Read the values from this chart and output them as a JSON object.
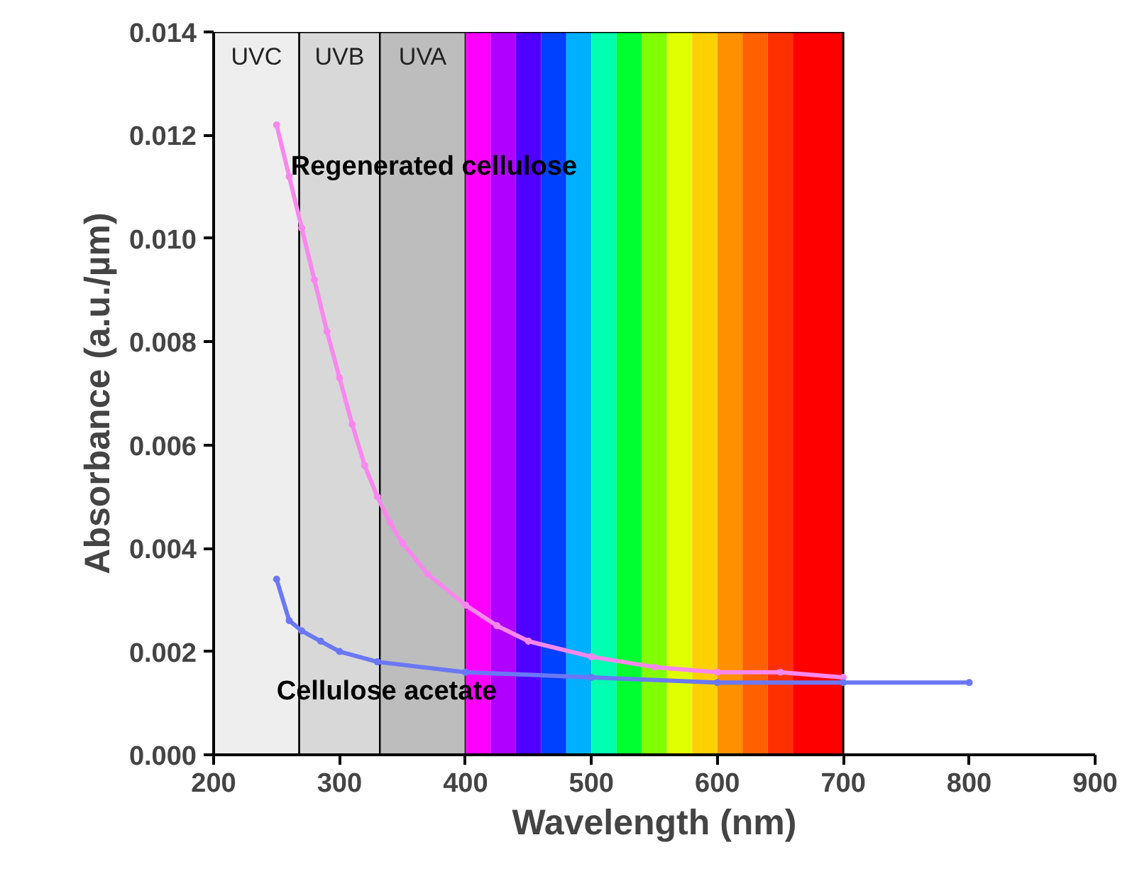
{
  "chart_data": {
    "type": "line",
    "xlabel": "Wavelength (nm)",
    "ylabel": "Absorbance (a.u./µm)",
    "xlim": [
      200,
      900
    ],
    "xticks": [
      200,
      300,
      400,
      500,
      600,
      700,
      800,
      900
    ],
    "ylim": [
      0,
      0.014
    ],
    "yticks": [
      {
        "value": 0,
        "label": "0.000"
      },
      {
        "value": 0.002,
        "label": "0.002"
      },
      {
        "value": 0.004,
        "label": "0.004"
      },
      {
        "value": 0.006,
        "label": "0.006"
      },
      {
        "value": 0.008,
        "label": "0.008"
      },
      {
        "value": 0.01,
        "label": "0.010"
      },
      {
        "value": 0.012,
        "label": "0.012"
      },
      {
        "value": 0.014,
        "label": "0.014"
      }
    ],
    "grid": false,
    "marker": "circle",
    "line_style": "solid",
    "series": [
      {
        "name": "Regenerated cellulose",
        "color": "#f888ee",
        "x": [
          250,
          260,
          270,
          280,
          290,
          300,
          310,
          320,
          330,
          340,
          350,
          370,
          400,
          425,
          450,
          500,
          550,
          600,
          650,
          700
        ],
        "values": [
          0.0122,
          0.0112,
          0.0102,
          0.0092,
          0.0082,
          0.0073,
          0.0064,
          0.0056,
          0.005,
          0.0045,
          0.0041,
          0.0035,
          0.0029,
          0.0025,
          0.0022,
          0.0019,
          0.0017,
          0.0016,
          0.0016,
          0.0015
        ]
      },
      {
        "name": "Cellulose acetate",
        "color": "#6b78f5",
        "x": [
          250,
          260,
          270,
          285,
          300,
          330,
          400,
          500,
          600,
          700,
          800
        ],
        "values": [
          0.0034,
          0.0026,
          0.0024,
          0.0022,
          0.002,
          0.0018,
          0.0016,
          0.0015,
          0.0014,
          0.0014,
          0.0014
        ]
      }
    ],
    "bands": [
      {
        "axis": "x",
        "from": 200,
        "to": 268,
        "label": "UVC",
        "color": "#eeeeee"
      },
      {
        "axis": "x",
        "from": 268,
        "to": 332,
        "label": "UVB",
        "color": "#d8d8d8"
      },
      {
        "axis": "x",
        "from": 332,
        "to": 400,
        "label": "UVA",
        "color": "#bdbdbd"
      },
      {
        "axis": "x",
        "from": 400,
        "to": 420,
        "color": "#ff00ff"
      },
      {
        "axis": "x",
        "from": 420,
        "to": 440,
        "color": "#b000ff"
      },
      {
        "axis": "x",
        "from": 440,
        "to": 460,
        "color": "#5000ff"
      },
      {
        "axis": "x",
        "from": 460,
        "to": 480,
        "color": "#0040ff"
      },
      {
        "axis": "x",
        "from": 480,
        "to": 500,
        "color": "#00b0ff"
      },
      {
        "axis": "x",
        "from": 500,
        "to": 520,
        "color": "#00ffb0"
      },
      {
        "axis": "x",
        "from": 520,
        "to": 540,
        "color": "#00ff30"
      },
      {
        "axis": "x",
        "from": 540,
        "to": 560,
        "color": "#80ff00"
      },
      {
        "axis": "x",
        "from": 560,
        "to": 580,
        "color": "#e0ff00"
      },
      {
        "axis": "x",
        "from": 580,
        "to": 600,
        "color": "#ffd000"
      },
      {
        "axis": "x",
        "from": 600,
        "to": 620,
        "color": "#ff9000"
      },
      {
        "axis": "x",
        "from": 620,
        "to": 640,
        "color": "#ff6000"
      },
      {
        "axis": "x",
        "from": 640,
        "to": 660,
        "color": "#ff3000"
      },
      {
        "axis": "x",
        "from": 660,
        "to": 700,
        "color": "#ff0000"
      }
    ]
  }
}
